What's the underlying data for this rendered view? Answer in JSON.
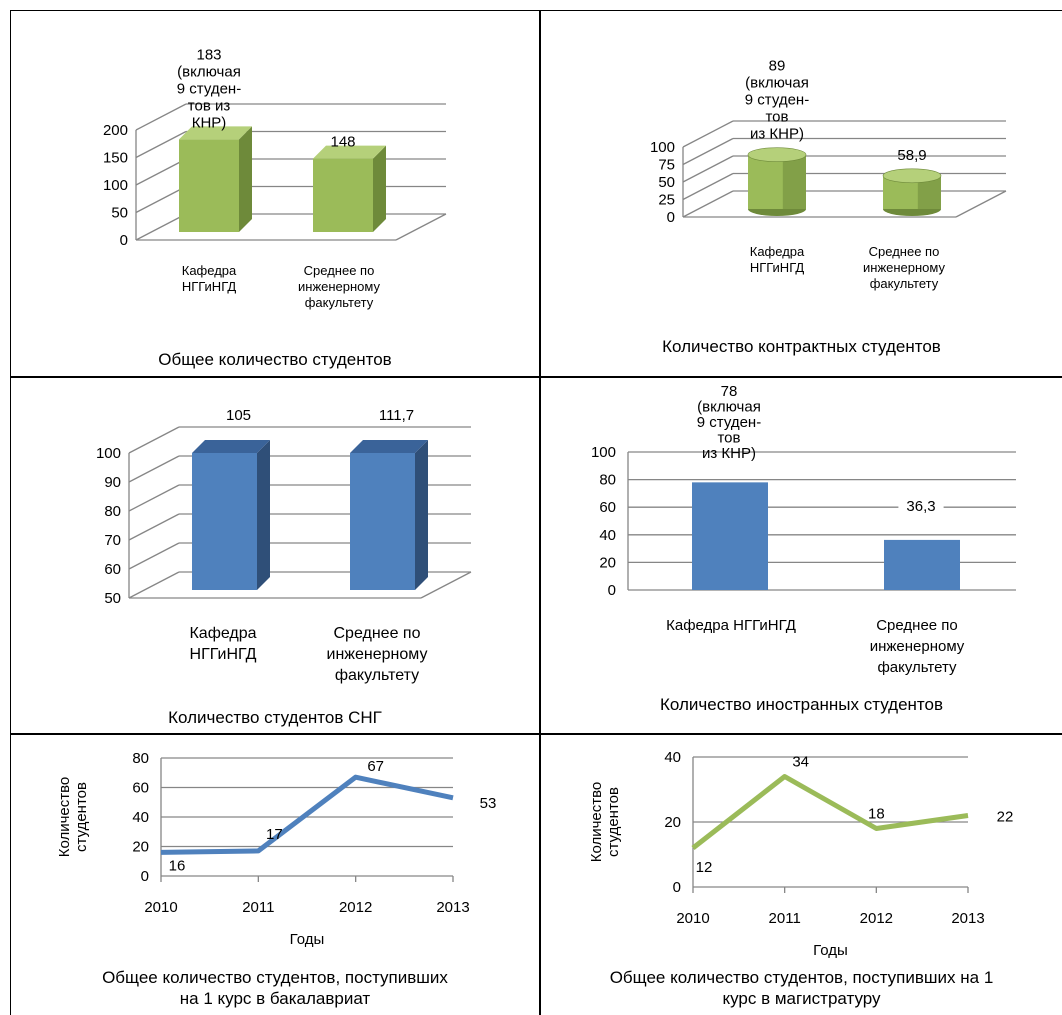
{
  "colors": {
    "green": "#9bbb59",
    "green_dark": "#6e8a3a",
    "green_top": "#b5d07a",
    "blue": "#4f81bd",
    "blue_dark": "#2f4f78",
    "blue_top": "#3a6399",
    "grid": "#868686",
    "axis": "#868686",
    "text": "#000000"
  },
  "captions": {
    "c1": "Общее количество студентов",
    "c2": "Количество контрактных студентов",
    "c3": "Количество студентов СНГ",
    "c4": "Количество иностранных студентов",
    "c5": "Общее количество студентов, поступивших на 1 курс в бакалавриат",
    "c6": "Общее количество студентов, поступивших на 1 курс в магистратуру"
  },
  "chart_data": [
    {
      "id": "c1",
      "type": "bar",
      "style": "3d-box",
      "color": "green",
      "categories": [
        "Кафедра НГГиНГД",
        "Среднее по инженерному факультету"
      ],
      "values": [
        183,
        148
      ],
      "data_labels": [
        "183 (включая 9 студен- тов из КНР)",
        "148"
      ],
      "yticks": [
        0,
        50,
        100,
        150,
        200
      ],
      "ylim": [
        0,
        200
      ],
      "grid": true
    },
    {
      "id": "c2",
      "type": "bar",
      "style": "3d-cylinder",
      "color": "green",
      "categories": [
        "Кафедра НГГиНГД",
        "Среднее по инженерному факультету"
      ],
      "values": [
        89,
        58.9
      ],
      "data_labels": [
        "89 (включая 9 студен- тов из КНР)",
        "58,9"
      ],
      "yticks": [
        0,
        25,
        50,
        75,
        100
      ],
      "ylim": [
        0,
        100
      ],
      "grid": true
    },
    {
      "id": "c3",
      "type": "bar",
      "style": "3d-box",
      "color": "blue",
      "categories": [
        "Кафедра НГГиНГД",
        "Среднее по инженерному факультету"
      ],
      "values": [
        105,
        111.7
      ],
      "data_labels": [
        "105",
        "111,7"
      ],
      "yticks": [
        50,
        60,
        70,
        80,
        90,
        100
      ],
      "ylim": [
        50,
        100
      ],
      "grid": true
    },
    {
      "id": "c4",
      "type": "bar",
      "style": "flat",
      "color": "blue",
      "categories": [
        "Кафедра НГГиНГД",
        "Среднее по инженерному факультету"
      ],
      "values": [
        78,
        36.3
      ],
      "data_labels": [
        "78 (включая 9 студен- тов из КНР)",
        "36,3"
      ],
      "yticks": [
        0,
        20,
        40,
        60,
        80,
        100
      ],
      "ylim": [
        0,
        100
      ],
      "grid": true
    },
    {
      "id": "c5",
      "type": "line",
      "color": "blue",
      "x": [
        "2010",
        "2011",
        "2012",
        "2013"
      ],
      "values": [
        16,
        17,
        67,
        53
      ],
      "data_labels": [
        "16",
        "17",
        "67",
        "53"
      ],
      "yticks": [
        0,
        20,
        40,
        60,
        80
      ],
      "ylim": [
        0,
        80
      ],
      "xlabel": "Годы",
      "ylabel": "Количество студентов",
      "grid": true
    },
    {
      "id": "c6",
      "type": "line",
      "color": "green",
      "x": [
        "2010",
        "2011",
        "2012",
        "2013"
      ],
      "values": [
        12,
        34,
        18,
        22
      ],
      "data_labels": [
        "12",
        "34",
        "18",
        "22"
      ],
      "yticks": [
        0,
        20,
        40
      ],
      "ylim": [
        0,
        40
      ],
      "xlabel": "Годы",
      "ylabel": "Количество студентов",
      "grid": true
    }
  ]
}
